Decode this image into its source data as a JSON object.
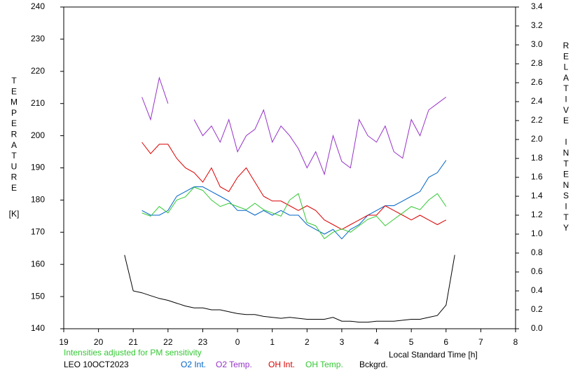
{
  "chart_data": {
    "type": "line",
    "y_label": "TEMPERATURE",
    "y_unit": "[K]",
    "y2_label": "RELATIVE INTENSITY",
    "x_label": "Local Standard Time [h]",
    "annotation": "Intensities adjusted for PM sensitivity",
    "station": "LEO 10OCT2023",
    "xlim": [
      19,
      32
    ],
    "xticks": [
      19,
      20,
      21,
      22,
      23,
      {
        "value": 24,
        "label": "0"
      },
      {
        "value": 25,
        "label": "1"
      },
      {
        "value": 26,
        "label": "2"
      },
      {
        "value": 27,
        "label": "3"
      },
      {
        "value": 28,
        "label": "4"
      },
      {
        "value": 29,
        "label": "5"
      },
      {
        "value": 30,
        "label": "6"
      },
      {
        "value": 31,
        "label": "7"
      },
      {
        "value": 32,
        "label": "8"
      }
    ],
    "ylim": [
      140,
      240
    ],
    "yticks": [
      140,
      150,
      160,
      170,
      180,
      190,
      200,
      210,
      220,
      230,
      240
    ],
    "y2lim": [
      0,
      3.4
    ],
    "y2ticks": [
      {
        "value": 0,
        "label": "0.0"
      },
      0.2,
      0.4,
      0.6,
      0.8,
      {
        "value": 1,
        "label": "1.0"
      },
      1.2,
      1.4,
      1.6,
      1.8,
      {
        "value": 2,
        "label": "2.0"
      },
      2.2,
      2.4,
      2.6,
      2.8,
      {
        "value": 3,
        "label": "3.0"
      },
      3.2,
      3.4
    ],
    "x": [
      21.25,
      21.5,
      21.75,
      22,
      22.25,
      22.5,
      22.75,
      23,
      23.25,
      23.5,
      23.75,
      24,
      24.25,
      24.5,
      24.75,
      25,
      25.25,
      25.5,
      25.75,
      26,
      26.25,
      26.5,
      26.75,
      27,
      27.25,
      27.5,
      27.75,
      28,
      28.25,
      28.5,
      28.75,
      29,
      29.25,
      29.5,
      29.75,
      30
    ],
    "series": [
      {
        "name": "O2 Int.",
        "color": "#0064c8",
        "axis": "y2",
        "values": [
          1.25,
          1.2,
          1.2,
          1.25,
          1.4,
          1.45,
          1.5,
          1.5,
          1.45,
          1.4,
          1.35,
          1.25,
          1.25,
          1.2,
          1.25,
          1.2,
          1.25,
          1.2,
          1.2,
          1.1,
          1.05,
          1.0,
          1.05,
          0.95,
          1.05,
          1.1,
          1.2,
          1.25,
          1.3,
          1.3,
          1.35,
          1.4,
          1.45,
          1.6,
          1.65,
          1.78
        ]
      },
      {
        "name": "O2 Temp.",
        "color": "#9632c8",
        "values": [
          212,
          205,
          218,
          210,
          null,
          null,
          205,
          200,
          203,
          198,
          205,
          195,
          200,
          202,
          208,
          198,
          203,
          200,
          196,
          190,
          195,
          188,
          200,
          192,
          190,
          205,
          200,
          198,
          203,
          195,
          193,
          205,
          200,
          208,
          210,
          212
        ]
      },
      {
        "name": "OH Int.",
        "color": "#dc0000",
        "axis": "y2",
        "values": [
          1.97,
          1.85,
          1.95,
          1.95,
          1.8,
          1.7,
          1.65,
          1.55,
          1.7,
          1.5,
          1.45,
          1.6,
          1.7,
          1.55,
          1.4,
          1.35,
          1.35,
          1.3,
          1.25,
          1.3,
          1.25,
          1.15,
          1.1,
          1.05,
          1.1,
          1.15,
          1.2,
          1.2,
          1.3,
          1.25,
          1.2,
          1.15,
          1.2,
          1.15,
          1.1,
          1.15
        ]
      },
      {
        "name": "OH Temp.",
        "color": "#32c832",
        "values": [
          176,
          175,
          178,
          176,
          180,
          181,
          184,
          183,
          180,
          178,
          179,
          178,
          177,
          179,
          177,
          176,
          175,
          180,
          182,
          173,
          172,
          168,
          170,
          171,
          170,
          172,
          174,
          175,
          172,
          174,
          176,
          178,
          177,
          180,
          182,
          178
        ]
      },
      {
        "name": "Bckgrd.",
        "color": "#000000",
        "axis": "y2",
        "x": [
          20.75,
          21,
          21.25,
          21.5,
          21.75,
          22,
          22.25,
          22.5,
          22.75,
          23,
          23.25,
          23.5,
          23.75,
          24,
          24.25,
          24.5,
          24.75,
          25,
          25.25,
          25.5,
          25.75,
          26,
          26.25,
          26.5,
          26.75,
          27,
          27.25,
          27.5,
          27.75,
          28,
          28.25,
          28.5,
          28.75,
          29,
          29.25,
          29.5,
          29.75,
          30,
          30.25
        ],
        "values": [
          0.78,
          0.4,
          0.38,
          0.35,
          0.32,
          0.3,
          0.27,
          0.24,
          0.22,
          0.22,
          0.2,
          0.2,
          0.18,
          0.16,
          0.15,
          0.15,
          0.13,
          0.12,
          0.11,
          0.12,
          0.11,
          0.1,
          0.1,
          0.1,
          0.12,
          0.08,
          0.08,
          0.07,
          0.07,
          0.08,
          0.08,
          0.08,
          0.09,
          0.1,
          0.1,
          0.12,
          0.14,
          0.25,
          0.78
        ]
      }
    ]
  }
}
